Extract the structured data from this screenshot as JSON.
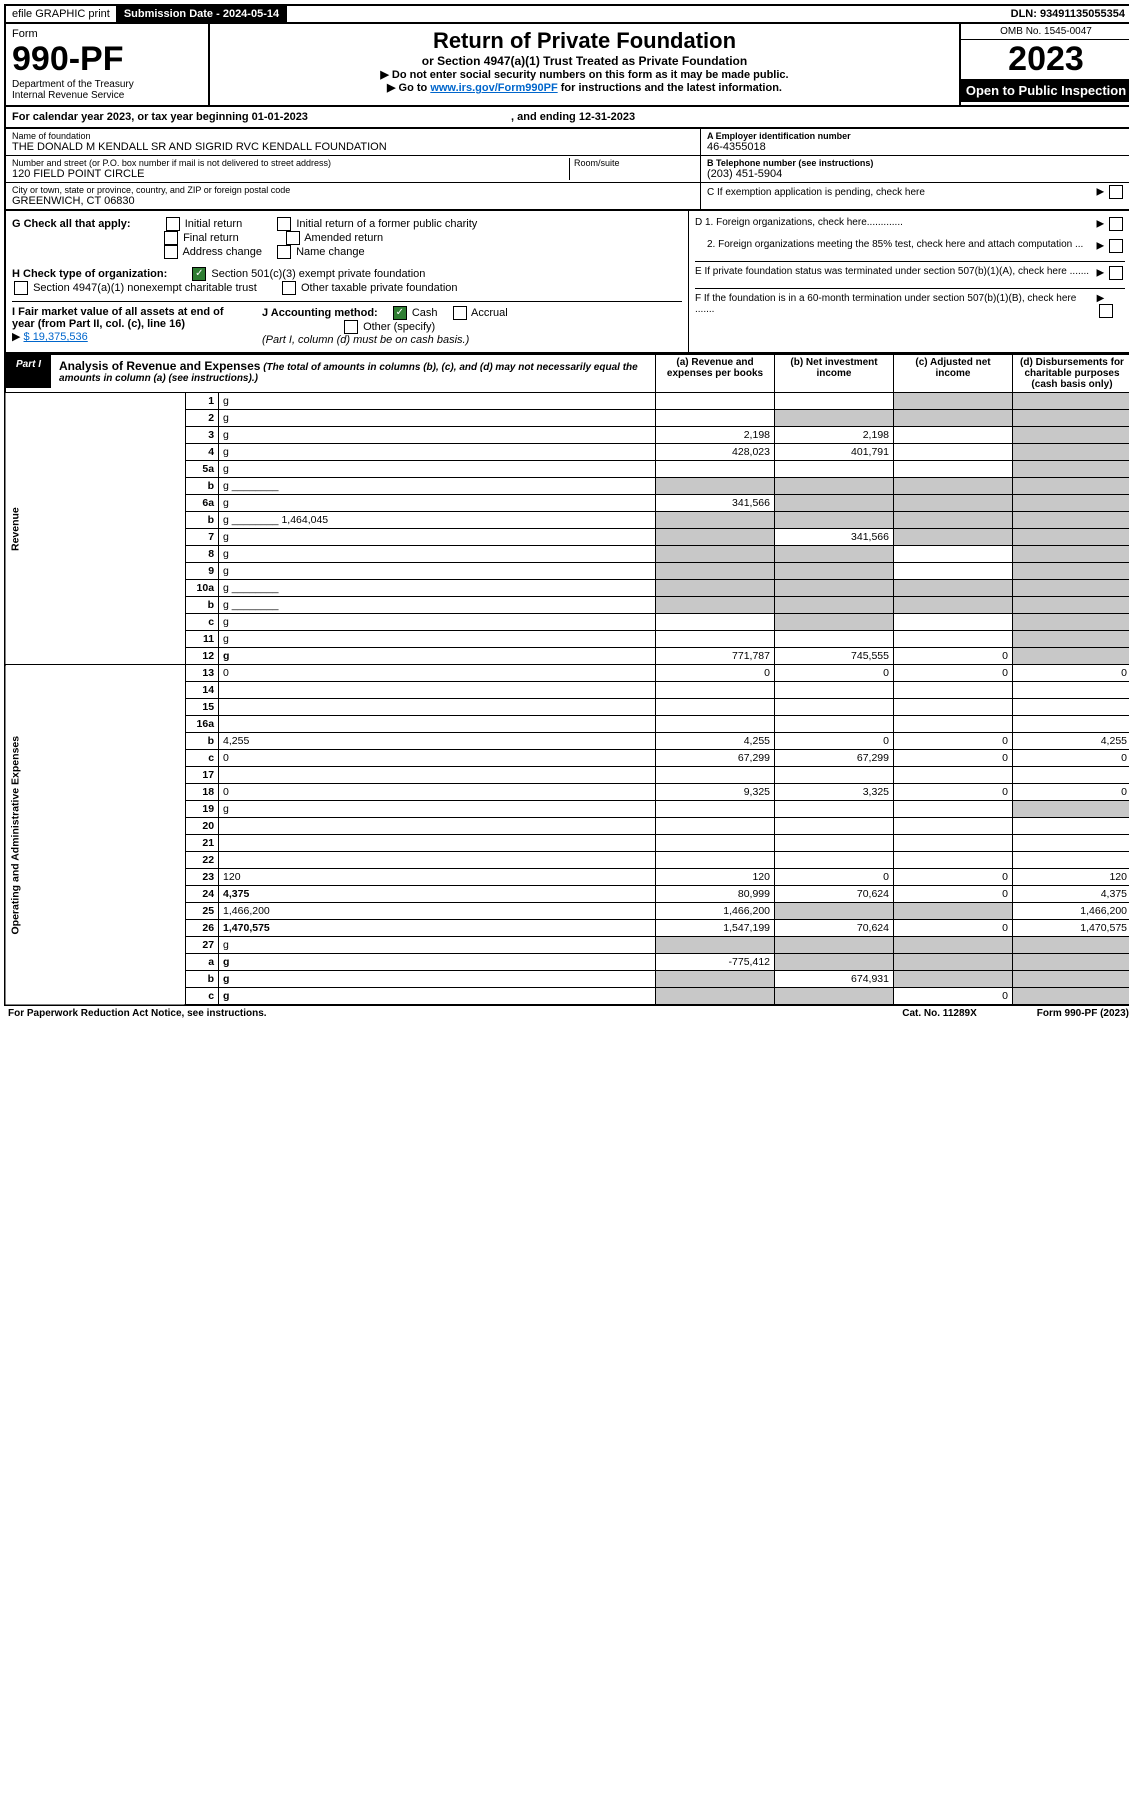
{
  "topbar": {
    "efile": "efile GRAPHIC print",
    "submission_label": "Submission Date - 2024-05-14",
    "dln": "DLN: 93491135055354"
  },
  "header": {
    "form_word": "Form",
    "form_num": "990-PF",
    "dept": "Department of the Treasury",
    "irs": "Internal Revenue Service",
    "title": "Return of Private Foundation",
    "subtitle": "or Section 4947(a)(1) Trust Treated as Private Foundation",
    "note1": "▶ Do not enter social security numbers on this form as it may be made public.",
    "note2_pre": "▶ Go to ",
    "note2_link": "www.irs.gov/Form990PF",
    "note2_post": " for instructions and the latest information.",
    "omb": "OMB No. 1545-0047",
    "year": "2023",
    "open": "Open to Public Inspection"
  },
  "cal_year": {
    "pre": "For calendar year 2023, or tax year beginning ",
    "begin": "01-01-2023",
    "mid": " , and ending ",
    "end": "12-31-2023"
  },
  "info": {
    "name_label": "Name of foundation",
    "name": "THE DONALD M KENDALL SR AND SIGRID RVC KENDALL FOUNDATION",
    "addr_label": "Number and street (or P.O. box number if mail is not delivered to street address)",
    "addr": "120 FIELD POINT CIRCLE",
    "room_label": "Room/suite",
    "city_label": "City or town, state or province, country, and ZIP or foreign postal code",
    "city": "GREENWICH, CT  06830",
    "ein_label": "A Employer identification number",
    "ein": "46-4355018",
    "phone_label": "B Telephone number (see instructions)",
    "phone": "(203) 451-5904",
    "c_label": "C If exemption application is pending, check here"
  },
  "section_g": {
    "g_label": "G Check all that apply:",
    "opts": [
      "Initial return",
      "Final return",
      "Address change",
      "Initial return of a former public charity",
      "Amended return",
      "Name change"
    ],
    "h_label": "H Check type of organization:",
    "h1": "Section 501(c)(3) exempt private foundation",
    "h2": "Section 4947(a)(1) nonexempt charitable trust",
    "h3": "Other taxable private foundation",
    "i_label": "I Fair market value of all assets at end of year (from Part II, col. (c), line 16)",
    "i_val": "$  19,375,536",
    "j_label": "J Accounting method:",
    "j1": "Cash",
    "j2": "Accrual",
    "j3": "Other (specify)",
    "j_note": "(Part I, column (d) must be on cash basis.)",
    "d1": "D 1. Foreign organizations, check here.............",
    "d2": "2. Foreign organizations meeting the 85% test, check here and attach computation ...",
    "e": "E  If private foundation status was terminated under section 507(b)(1)(A), check here .......",
    "f": "F  If the foundation is in a 60-month termination under section 507(b)(1)(B), check here ......."
  },
  "part1": {
    "tag": "Part I",
    "title": "Analysis of Revenue and Expenses",
    "note": " (The total of amounts in columns (b), (c), and (d) may not necessarily equal the amounts in column (a) (see instructions).)",
    "col_a": "(a) Revenue and expenses per books",
    "col_b": "(b) Net investment income",
    "col_c": "(c) Adjusted net income",
    "col_d": "(d) Disbursements for charitable purposes (cash basis only)"
  },
  "side_labels": {
    "revenue": "Revenue",
    "expenses": "Operating and Administrative Expenses"
  },
  "rows": [
    {
      "n": "1",
      "d": "g",
      "a": "",
      "b": "",
      "c": "g"
    },
    {
      "n": "2",
      "d": "g",
      "a": "",
      "b": "g",
      "c": "g",
      "nobold": true
    },
    {
      "n": "3",
      "d": "g",
      "a": "2,198",
      "b": "2,198",
      "c": ""
    },
    {
      "n": "4",
      "d": "g",
      "a": "428,023",
      "b": "401,791",
      "c": ""
    },
    {
      "n": "5a",
      "d": "g",
      "a": "",
      "b": "",
      "c": ""
    },
    {
      "n": "b",
      "d": "g",
      "a": "g",
      "b": "g",
      "c": "g",
      "inline": true
    },
    {
      "n": "6a",
      "d": "g",
      "a": "341,566",
      "b": "g",
      "c": "g"
    },
    {
      "n": "b",
      "d": "g",
      "a": "g",
      "b": "g",
      "c": "g",
      "inline_val": "1,464,045"
    },
    {
      "n": "7",
      "d": "g",
      "a": "g",
      "b": "341,566",
      "c": "g"
    },
    {
      "n": "8",
      "d": "g",
      "a": "g",
      "b": "g",
      "c": ""
    },
    {
      "n": "9",
      "d": "g",
      "a": "g",
      "b": "g",
      "c": ""
    },
    {
      "n": "10a",
      "d": "g",
      "a": "g",
      "b": "g",
      "c": "g",
      "inline": true
    },
    {
      "n": "b",
      "d": "g",
      "a": "g",
      "b": "g",
      "c": "g",
      "inline": true
    },
    {
      "n": "c",
      "d": "g",
      "a": "",
      "b": "g",
      "c": ""
    },
    {
      "n": "11",
      "d": "g",
      "a": "",
      "b": "",
      "c": ""
    },
    {
      "n": "12",
      "d": "g",
      "a": "771,787",
      "b": "745,555",
      "c": "0",
      "bold": true
    },
    {
      "n": "13",
      "d": "0",
      "a": "0",
      "b": "0",
      "c": "0"
    },
    {
      "n": "14",
      "d": "",
      "a": "",
      "b": "",
      "c": ""
    },
    {
      "n": "15",
      "d": "",
      "a": "",
      "b": "",
      "c": ""
    },
    {
      "n": "16a",
      "d": "",
      "a": "",
      "b": "",
      "c": ""
    },
    {
      "n": "b",
      "d": "4,255",
      "a": "4,255",
      "b": "0",
      "c": "0"
    },
    {
      "n": "c",
      "d": "0",
      "a": "67,299",
      "b": "67,299",
      "c": "0"
    },
    {
      "n": "17",
      "d": "",
      "a": "",
      "b": "",
      "c": ""
    },
    {
      "n": "18",
      "d": "0",
      "a": "9,325",
      "b": "3,325",
      "c": "0"
    },
    {
      "n": "19",
      "d": "g",
      "a": "",
      "b": "",
      "c": ""
    },
    {
      "n": "20",
      "d": "",
      "a": "",
      "b": "",
      "c": ""
    },
    {
      "n": "21",
      "d": "",
      "a": "",
      "b": "",
      "c": ""
    },
    {
      "n": "22",
      "d": "",
      "a": "",
      "b": "",
      "c": ""
    },
    {
      "n": "23",
      "d": "120",
      "a": "120",
      "b": "0",
      "c": "0"
    },
    {
      "n": "24",
      "d": "4,375",
      "a": "80,999",
      "b": "70,624",
      "c": "0",
      "bold": true
    },
    {
      "n": "25",
      "d": "1,466,200",
      "a": "1,466,200",
      "b": "g",
      "c": "g"
    },
    {
      "n": "26",
      "d": "1,470,575",
      "a": "1,547,199",
      "b": "70,624",
      "c": "0",
      "bold": true
    },
    {
      "n": "27",
      "d": "g",
      "a": "g",
      "b": "g",
      "c": "g"
    },
    {
      "n": "a",
      "d": "g",
      "a": "-775,412",
      "b": "g",
      "c": "g",
      "bold": true
    },
    {
      "n": "b",
      "d": "g",
      "a": "g",
      "b": "674,931",
      "c": "g",
      "bold": true
    },
    {
      "n": "c",
      "d": "g",
      "a": "g",
      "b": "g",
      "c": "0",
      "bold": true
    }
  ],
  "footer": {
    "left": "For Paperwork Reduction Act Notice, see instructions.",
    "mid": "Cat. No. 11289X",
    "right": "Form 990-PF (2023)"
  }
}
